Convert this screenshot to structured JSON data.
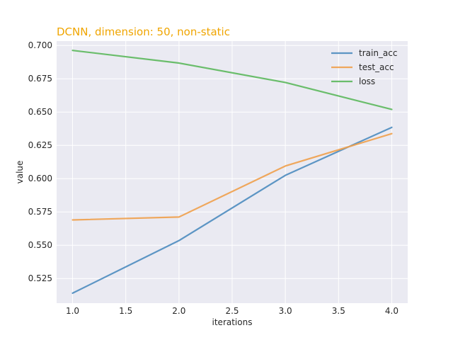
{
  "chart_data": {
    "type": "line",
    "title": "DCNN, dimension: 50, non-static",
    "title_color": "#f0a500",
    "xlabel": "iterations",
    "ylabel": "value",
    "x": [
      1.0,
      2.0,
      3.0,
      4.0
    ],
    "xlim": [
      0.85,
      4.15
    ],
    "ylim": [
      0.5065,
      0.7033
    ],
    "xticks": [
      1.0,
      1.5,
      2.0,
      2.5,
      3.0,
      3.5,
      4.0
    ],
    "xtick_labels": [
      "1.0",
      "1.5",
      "2.0",
      "2.5",
      "3.0",
      "3.5",
      "4.0"
    ],
    "yticks": [
      0.525,
      0.55,
      0.575,
      0.6,
      0.625,
      0.65,
      0.675,
      0.7
    ],
    "ytick_labels": [
      "0.525",
      "0.550",
      "0.575",
      "0.600",
      "0.625",
      "0.650",
      "0.675",
      "0.700"
    ],
    "grid": true,
    "legend_position": "top-right",
    "background": "#eaeaf2",
    "series": [
      {
        "name": "train_acc",
        "color": "#4c8cbf",
        "values": [
          0.514,
          0.5535,
          0.6025,
          0.6385
        ]
      },
      {
        "name": "test_acc",
        "color": "#f0a04b",
        "values": [
          0.569,
          0.5712,
          0.6095,
          0.6338
        ]
      },
      {
        "name": "loss",
        "color": "#5cb85c",
        "values": [
          0.6963,
          0.6868,
          0.6722,
          0.652
        ]
      }
    ]
  }
}
